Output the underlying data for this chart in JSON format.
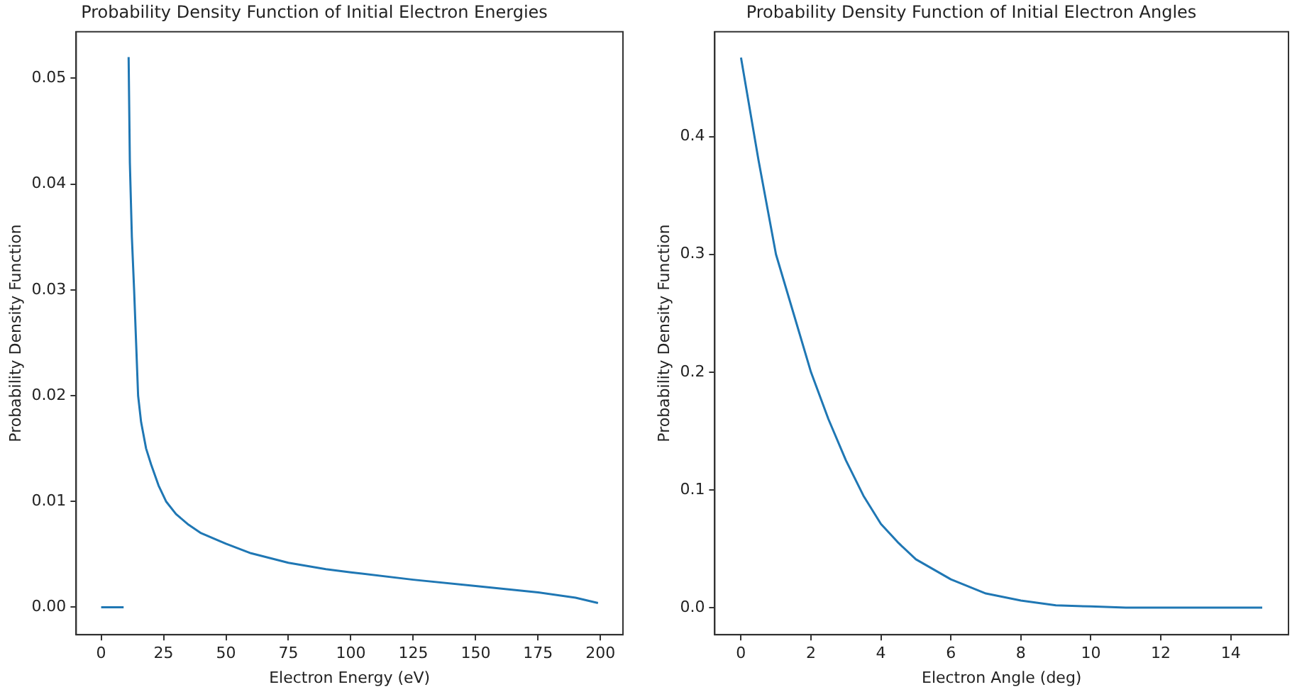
{
  "chart_data": [
    {
      "type": "line",
      "title": "Probability Density Function of Initial Electron Energies",
      "xlabel": "Electron Energy (eV)",
      "ylabel": "Probability Density Function",
      "xlim": [
        -10,
        209
      ],
      "ylim": [
        -0.0026,
        0.0544
      ],
      "xticks": [
        0,
        25,
        50,
        75,
        100,
        125,
        150,
        175,
        200
      ],
      "yticks": [
        {
          "value": 0,
          "label": "0.00"
        },
        {
          "value": 0.01,
          "label": "0.01"
        },
        {
          "value": 0.02,
          "label": "0.02"
        },
        {
          "value": 0.03,
          "label": "0.03"
        },
        {
          "value": 0.04,
          "label": "0.04"
        },
        {
          "value": 0.05,
          "label": "0.05"
        }
      ],
      "grid": false,
      "legend": false,
      "series": [
        {
          "color": "#1f77b4",
          "x": [
            0,
            9,
            10,
            11,
            11.5,
            12.3,
            13.2,
            14,
            14.8,
            16,
            18,
            20,
            23,
            26,
            30,
            35,
            40,
            50,
            60,
            75,
            90,
            100,
            125,
            150,
            175,
            190,
            199
          ],
          "values": [
            0,
            0,
            null,
            0.052,
            0.042,
            0.035,
            0.03,
            0.025,
            0.02,
            0.0175,
            0.015,
            0.0135,
            0.0115,
            0.01,
            0.0088,
            0.0078,
            0.007,
            0.006,
            0.0051,
            0.0042,
            0.0036,
            0.0033,
            0.0026,
            0.002,
            0.0014,
            0.0009,
            0.0004
          ]
        }
      ]
    },
    {
      "type": "line",
      "title": "Probability Density Function of Initial Electron Angles",
      "xlabel": "Electron Angle (deg)",
      "ylabel": "Probability Density Function",
      "xlim": [
        -0.75,
        15.65
      ],
      "ylim": [
        -0.023,
        0.489
      ],
      "xticks": [
        0,
        2,
        4,
        6,
        8,
        10,
        12,
        14
      ],
      "yticks": [
        {
          "value": 0,
          "label": "0.0"
        },
        {
          "value": 0.1,
          "label": "0.1"
        },
        {
          "value": 0.2,
          "label": "0.2"
        },
        {
          "value": 0.3,
          "label": "0.3"
        },
        {
          "value": 0.4,
          "label": "0.4"
        }
      ],
      "grid": false,
      "legend": false,
      "series": [
        {
          "color": "#1f77b4",
          "x": [
            0,
            0.5,
            1,
            1.5,
            2,
            2.5,
            3,
            3.5,
            4,
            4.5,
            5,
            6,
            7,
            8,
            9,
            10,
            11,
            12,
            13,
            14,
            14.9
          ],
          "values": [
            0.467,
            0.38,
            0.3,
            0.25,
            0.2,
            0.16,
            0.125,
            0.095,
            0.071,
            0.055,
            0.041,
            0.024,
            0.012,
            0.006,
            0.002,
            0.001,
            0,
            0,
            0,
            0,
            0
          ]
        }
      ]
    }
  ]
}
